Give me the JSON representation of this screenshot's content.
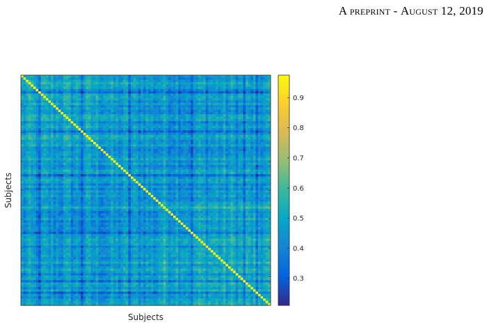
{
  "header": {
    "lead": "A",
    "preprint": "preprint",
    "separator": "-",
    "month": "August",
    "day_year": "12, 2019"
  },
  "chart_data": {
    "type": "heatmap",
    "title": "",
    "xlabel": "Subjects",
    "ylabel": "Subjects",
    "n_subjects": 100,
    "diagonal_value": 0.97,
    "offdiag_baseline": 0.45,
    "colorbar": {
      "min": 0.21,
      "max": 0.975,
      "ticks": [
        0.3,
        0.4,
        0.5,
        0.6,
        0.7,
        0.8,
        0.9
      ],
      "colormap": "parula"
    },
    "colors": {
      "axis": "#262626",
      "colormap_stops": [
        "#352a87",
        "#0363e1",
        "#1485d4",
        "#06a7c6",
        "#38b99e",
        "#92bf73",
        "#d9ba56",
        "#fcce2e",
        "#f9fb0e"
      ]
    }
  }
}
